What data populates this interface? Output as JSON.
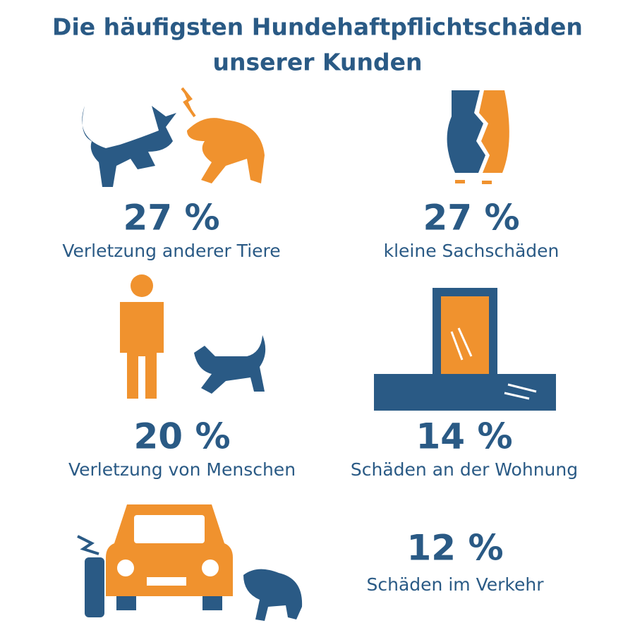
{
  "header": {
    "title_lines": [
      "Die häufigsten Hundehaftpflichtschäden",
      "unserer Kunden"
    ]
  },
  "items": [
    {
      "percent": "27 %",
      "label": "Verletzung anderer Tiere"
    },
    {
      "percent": "27 %",
      "label": "kleine Sachschäden"
    },
    {
      "percent": "20 %",
      "label": "Verletzung von Menschen"
    },
    {
      "percent": "14 %",
      "label": "Schäden an der Wohnung"
    },
    {
      "percent": "12 %",
      "label": "Schäden im Verkehr"
    }
  ]
}
